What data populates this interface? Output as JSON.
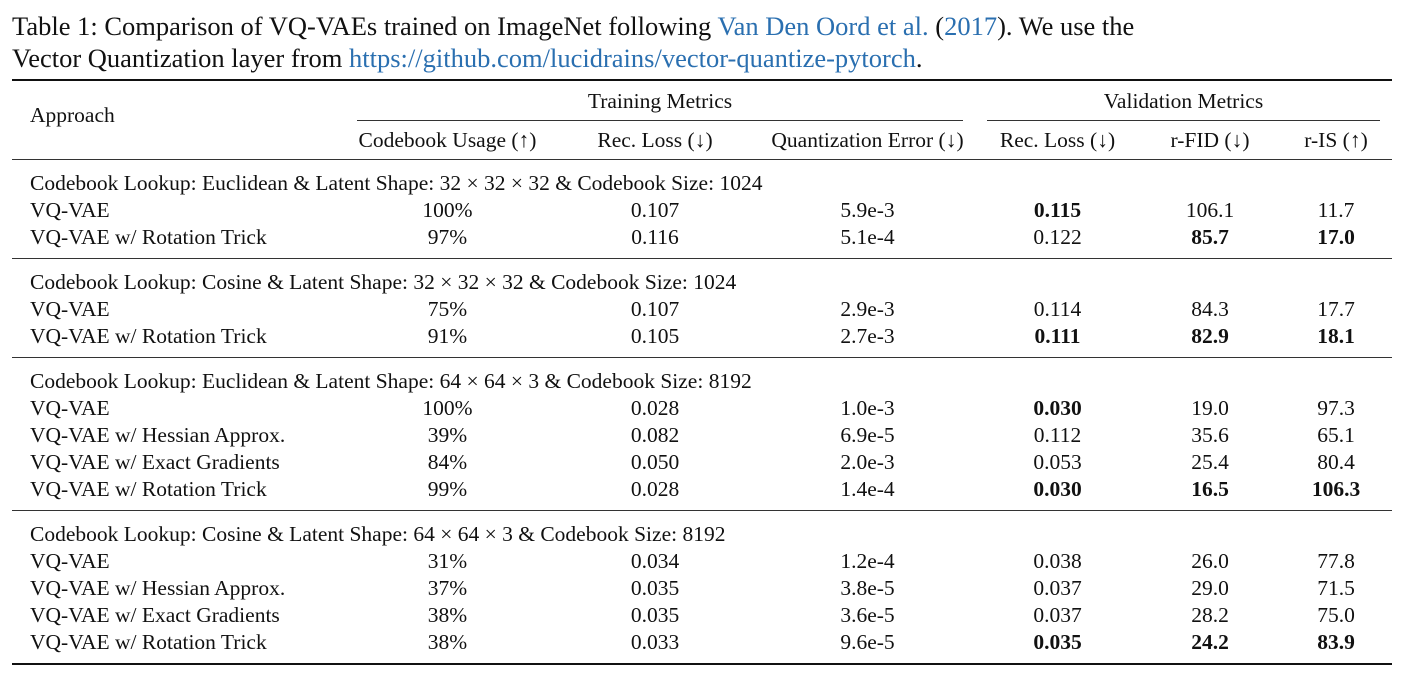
{
  "caption": {
    "prefix": "Table 1:  Comparison of VQ-VAEs trained on ImageNet following ",
    "cite_authors": "Van Den Oord et al.",
    "cite_open": " (",
    "cite_year": "2017",
    "middle": ").  We use the",
    "line2_prefix": "Vector Quantization layer from ",
    "url": "https://github.com/lucidrains/vector-quantize-pytorch",
    "line2_suffix": "."
  },
  "header": {
    "approach": "Approach",
    "training": "Training Metrics",
    "validation": "Validation Metrics",
    "columns": [
      "Codebook Usage (↑)",
      "Rec. Loss (↓)",
      "Quantization Error (↓)",
      "Rec. Loss (↓)",
      "r-FID (↓)",
      "r-IS (↑)"
    ]
  },
  "groups": [
    {
      "title": "Codebook Lookup: Euclidean & Latent Shape: 32 × 32 × 32 & Codebook Size: 1024",
      "rows": [
        {
          "name": "VQ-VAE",
          "values": [
            "100%",
            "0.107",
            "5.9e-3",
            "0.115",
            "106.1",
            "11.7"
          ],
          "bold": [
            false,
            false,
            false,
            true,
            false,
            false
          ]
        },
        {
          "name": "VQ-VAE w/ Rotation Trick",
          "values": [
            "97%",
            "0.116",
            "5.1e-4",
            "0.122",
            "85.7",
            "17.0"
          ],
          "bold": [
            false,
            false,
            false,
            false,
            true,
            true
          ]
        }
      ]
    },
    {
      "title": "Codebook Lookup: Cosine & Latent Shape: 32 × 32 × 32 & Codebook Size: 1024",
      "rows": [
        {
          "name": "VQ-VAE",
          "values": [
            "75%",
            "0.107",
            "2.9e-3",
            "0.114",
            "84.3",
            "17.7"
          ],
          "bold": [
            false,
            false,
            false,
            false,
            false,
            false
          ]
        },
        {
          "name": "VQ-VAE w/ Rotation Trick",
          "values": [
            "91%",
            "0.105",
            "2.7e-3",
            "0.111",
            "82.9",
            "18.1"
          ],
          "bold": [
            false,
            false,
            false,
            true,
            true,
            true
          ]
        }
      ]
    },
    {
      "title": "Codebook Lookup: Euclidean & Latent Shape: 64 × 64 × 3 & Codebook Size: 8192",
      "rows": [
        {
          "name": "VQ-VAE",
          "values": [
            "100%",
            "0.028",
            "1.0e-3",
            "0.030",
            "19.0",
            "97.3"
          ],
          "bold": [
            false,
            false,
            false,
            true,
            false,
            false
          ]
        },
        {
          "name": "VQ-VAE w/ Hessian Approx.",
          "values": [
            "39%",
            "0.082",
            "6.9e-5",
            "0.112",
            "35.6",
            "65.1"
          ],
          "bold": [
            false,
            false,
            false,
            false,
            false,
            false
          ]
        },
        {
          "name": "VQ-VAE w/ Exact Gradients",
          "values": [
            "84%",
            "0.050",
            "2.0e-3",
            "0.053",
            "25.4",
            "80.4"
          ],
          "bold": [
            false,
            false,
            false,
            false,
            false,
            false
          ]
        },
        {
          "name": "VQ-VAE w/ Rotation Trick",
          "values": [
            "99%",
            "0.028",
            "1.4e-4",
            "0.030",
            "16.5",
            "106.3"
          ],
          "bold": [
            false,
            false,
            false,
            true,
            true,
            true
          ]
        }
      ]
    },
    {
      "title": "Codebook Lookup: Cosine & Latent Shape: 64 × 64 × 3 & Codebook Size: 8192",
      "rows": [
        {
          "name": "VQ-VAE",
          "values": [
            "31%",
            "0.034",
            "1.2e-4",
            "0.038",
            "26.0",
            "77.8"
          ],
          "bold": [
            false,
            false,
            false,
            false,
            false,
            false
          ]
        },
        {
          "name": "VQ-VAE w/ Hessian Approx.",
          "values": [
            "37%",
            "0.035",
            "3.8e-5",
            "0.037",
            "29.0",
            "71.5"
          ],
          "bold": [
            false,
            false,
            false,
            false,
            false,
            false
          ]
        },
        {
          "name": "VQ-VAE w/ Exact Gradients",
          "values": [
            "38%",
            "0.035",
            "3.6e-5",
            "0.037",
            "28.2",
            "75.0"
          ],
          "bold": [
            false,
            false,
            false,
            false,
            false,
            false
          ]
        },
        {
          "name": "VQ-VAE w/ Rotation Trick",
          "values": [
            "38%",
            "0.033",
            "9.6e-5",
            "0.035",
            "24.2",
            "83.9"
          ],
          "bold": [
            false,
            false,
            false,
            true,
            true,
            true
          ]
        }
      ]
    }
  ],
  "colors": {
    "link": "#2a6fb0"
  }
}
